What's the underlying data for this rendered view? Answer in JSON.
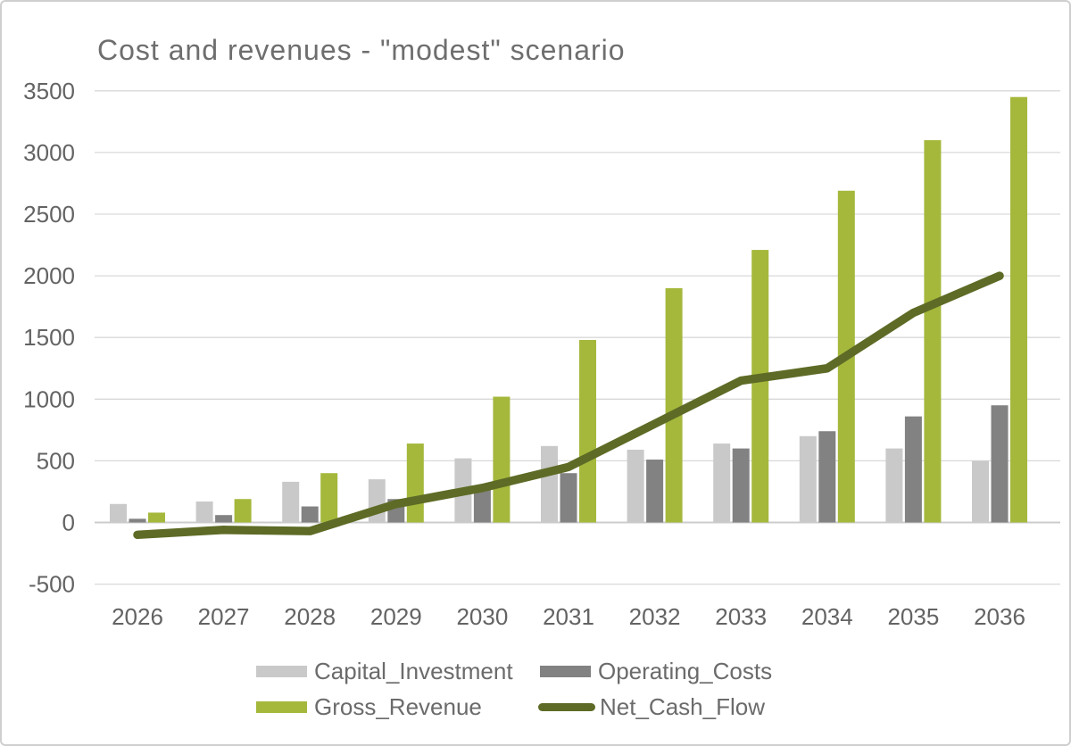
{
  "window": {
    "background": "#ffffff",
    "border_color": "#cfcfcf"
  },
  "chart_data": {
    "type": "bar",
    "subtype": "grouped bars with overlay line",
    "title": "Cost and revenues - \"modest\" scenario",
    "title_color": "#6e6e6e",
    "categories": [
      "2026",
      "2027",
      "2028",
      "2029",
      "2030",
      "2031",
      "2032",
      "2033",
      "2034",
      "2035",
      "2036"
    ],
    "series": [
      {
        "name": "Capital_Investment",
        "type": "bar",
        "color": "#c9c9c9",
        "values": [
          150,
          170,
          330,
          350,
          520,
          620,
          590,
          640,
          700,
          600,
          500
        ]
      },
      {
        "name": "Operating_Costs",
        "type": "bar",
        "color": "#828282",
        "values": [
          30,
          60,
          130,
          190,
          280,
          400,
          510,
          600,
          740,
          860,
          950
        ]
      },
      {
        "name": "Gross_Revenue",
        "type": "bar",
        "color": "#a5b83c",
        "values": [
          80,
          190,
          400,
          640,
          1020,
          1480,
          1900,
          2210,
          2690,
          3100,
          3450
        ]
      },
      {
        "name": "Net_Cash_Flow",
        "type": "line",
        "color": "#5d6b26",
        "values": [
          -100,
          -60,
          -70,
          150,
          280,
          450,
          800,
          1150,
          1250,
          1700,
          2000
        ]
      }
    ],
    "xlabel": "",
    "ylabel": "",
    "ylim": [
      -500,
      3500
    ],
    "yticks": [
      3500,
      3000,
      2500,
      2000,
      1500,
      1000,
      500,
      0,
      -500
    ],
    "grid": true,
    "gridline_color": "#d9d9d9",
    "axis_text_color": "#636363",
    "legend_position": "bottom",
    "legend_text_color": "#6b6b6b"
  }
}
